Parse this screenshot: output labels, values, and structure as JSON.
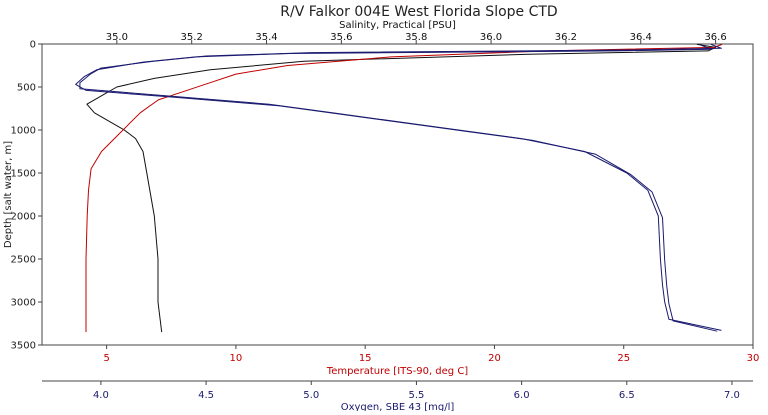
{
  "chart_data": {
    "type": "line",
    "title": "R/V Falkor 004E West Florida Slope CTD",
    "y_axis": {
      "label": "Depth [salt water, m]",
      "range": [
        0,
        3500
      ],
      "inverted": true,
      "ticks": [
        0,
        500,
        1000,
        1500,
        2000,
        2500,
        3000,
        3500
      ]
    },
    "x_axes": [
      {
        "id": "salinity",
        "label": "Salinity, Practical [PSU]",
        "position": "top",
        "color": "#111111",
        "range": [
          34.8,
          36.7
        ],
        "ticks": [
          "35.0",
          "35.2",
          "35.4",
          "35.6",
          "35.8",
          "36.0",
          "36.2",
          "36.4",
          "36.6"
        ]
      },
      {
        "id": "temperature",
        "label": "Temperature [ITS-90, deg C]",
        "position": "bottom",
        "color": "#c00000",
        "range": [
          2.5,
          30
        ],
        "ticks": [
          "5",
          "10",
          "15",
          "20",
          "25",
          "30"
        ]
      },
      {
        "id": "oxygen",
        "label": "Oxygen, SBE 43 [mg/l]",
        "position": "bottom-second",
        "color": "#1a1a70",
        "range": [
          3.72,
          7.1
        ],
        "ticks": [
          "4.0",
          "4.5",
          "5.0",
          "5.5",
          "6.0",
          "6.5",
          "7.0"
        ]
      }
    ],
    "series": [
      {
        "axis": "salinity",
        "color": "#111111",
        "points": [
          [
            36.55,
            5
          ],
          [
            36.6,
            40
          ],
          [
            36.58,
            80
          ],
          [
            36.1,
            120
          ],
          [
            35.5,
            200
          ],
          [
            35.25,
            300
          ],
          [
            35.1,
            400
          ],
          [
            35.0,
            500
          ],
          [
            34.96,
            600
          ],
          [
            34.92,
            700
          ],
          [
            34.94,
            800
          ],
          [
            34.98,
            900
          ],
          [
            35.02,
            1000
          ],
          [
            35.05,
            1100
          ],
          [
            35.07,
            1250
          ],
          [
            35.08,
            1500
          ],
          [
            35.1,
            2000
          ],
          [
            35.11,
            2500
          ],
          [
            35.11,
            3000
          ],
          [
            35.12,
            3350
          ]
        ]
      },
      {
        "axis": "temperature",
        "color": "#c00000",
        "points": [
          [
            28.8,
            5
          ],
          [
            28.5,
            40
          ],
          [
            22.0,
            80
          ],
          [
            16.0,
            150
          ],
          [
            12.0,
            250
          ],
          [
            10.0,
            350
          ],
          [
            9.0,
            450
          ],
          [
            8.0,
            550
          ],
          [
            7.0,
            650
          ],
          [
            6.3,
            800
          ],
          [
            5.8,
            950
          ],
          [
            5.3,
            1100
          ],
          [
            4.8,
            1250
          ],
          [
            4.4,
            1450
          ],
          [
            4.3,
            1700
          ],
          [
            4.25,
            2000
          ],
          [
            4.2,
            2500
          ],
          [
            4.2,
            3000
          ],
          [
            4.2,
            3350
          ]
        ]
      },
      {
        "axis": "oxygen",
        "color": "#1a1a70",
        "points": [
          [
            6.9,
            5
          ],
          [
            6.95,
            50
          ],
          [
            6.5,
            70
          ],
          [
            5.0,
            100
          ],
          [
            4.5,
            140
          ],
          [
            4.25,
            200
          ],
          [
            4.0,
            280
          ],
          [
            3.95,
            350
          ],
          [
            3.9,
            450
          ],
          [
            3.9,
            520
          ],
          [
            4.3,
            600
          ],
          [
            4.8,
            700
          ],
          [
            5.1,
            800
          ],
          [
            5.4,
            900
          ],
          [
            5.7,
            1000
          ],
          [
            6.0,
            1100
          ],
          [
            6.3,
            1250
          ],
          [
            6.5,
            1500
          ],
          [
            6.6,
            1700
          ],
          [
            6.65,
            2000
          ],
          [
            6.66,
            2500
          ],
          [
            6.67,
            2800
          ],
          [
            6.68,
            3000
          ],
          [
            6.7,
            3200
          ],
          [
            6.95,
            3330
          ]
        ]
      },
      {
        "axis": "oxygen",
        "color": "#1a1a70",
        "points": [
          [
            6.85,
            10
          ],
          [
            6.9,
            60
          ],
          [
            6.45,
            80
          ],
          [
            4.9,
            110
          ],
          [
            4.45,
            150
          ],
          [
            4.2,
            210
          ],
          [
            3.98,
            300
          ],
          [
            3.92,
            380
          ],
          [
            3.88,
            470
          ],
          [
            3.93,
            540
          ],
          [
            4.35,
            620
          ],
          [
            4.85,
            720
          ],
          [
            5.15,
            820
          ],
          [
            5.45,
            920
          ],
          [
            5.75,
            1020
          ],
          [
            6.05,
            1120
          ],
          [
            6.35,
            1280
          ],
          [
            6.52,
            1520
          ],
          [
            6.62,
            1720
          ],
          [
            6.67,
            2020
          ],
          [
            6.68,
            2520
          ],
          [
            6.69,
            2820
          ],
          [
            6.7,
            3020
          ],
          [
            6.72,
            3220
          ],
          [
            6.93,
            3340
          ]
        ]
      }
    ]
  }
}
